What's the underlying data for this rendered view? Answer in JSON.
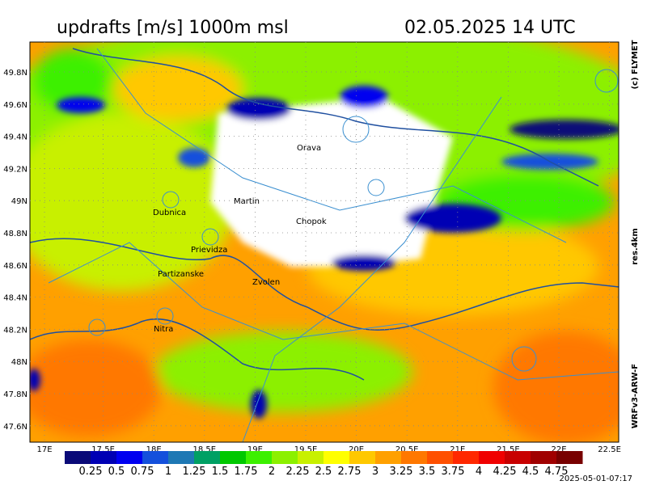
{
  "header": {
    "title": "updrafts [m/s] 1000m msl",
    "date": "02.05.2025 14 UTC"
  },
  "side": {
    "copyright": "(c) FLYMET",
    "resolution": "res.4km",
    "model": "WRFv3-ARW-F"
  },
  "timestamp": "2025-05-01-07:17",
  "axes": {
    "longitudes": [
      "17E",
      "17.5E",
      "18E",
      "18.5E",
      "19E",
      "19.5E",
      "20E",
      "20.5E",
      "21E",
      "21.5E",
      "22E",
      "22.5E"
    ],
    "latitudes": [
      "49.8N",
      "49.6N",
      "49.4N",
      "49.2N",
      "49N",
      "48.8N",
      "48.6N",
      "48.4N",
      "48.2N",
      "48N",
      "47.8N",
      "47.6N"
    ]
  },
  "cities": [
    {
      "label": "Orava"
    },
    {
      "label": "Martin"
    },
    {
      "label": "Dubnica"
    },
    {
      "label": "Chopok"
    },
    {
      "label": "Prievidza"
    },
    {
      "label": "Partizanske"
    },
    {
      "label": "Zvolen"
    },
    {
      "label": "Nitra"
    }
  ],
  "colorbar": {
    "labels": [
      0.25,
      0.5,
      0.75,
      1,
      1.25,
      1.5,
      1.75,
      2,
      2.25,
      2.5,
      2.75,
      3,
      3.25,
      3.5,
      3.75,
      4,
      4.25,
      4.5,
      4.75
    ],
    "colors": [
      "#0a0a78",
      "#0000b4",
      "#0000f0",
      "#1450dc",
      "#1e78b4",
      "#00a064",
      "#00c800",
      "#3cf000",
      "#8cf000",
      "#c8f000",
      "#ffff00",
      "#ffc800",
      "#ffa000",
      "#ff7800",
      "#ff5000",
      "#ff2800",
      "#f00000",
      "#c80000",
      "#a00000",
      "#780000"
    ]
  }
}
